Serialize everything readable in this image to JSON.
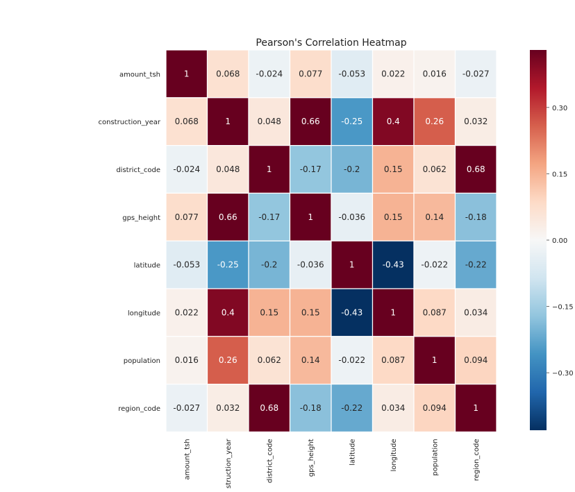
{
  "chart_data": {
    "type": "heatmap",
    "title": "Pearson's Correlation Heatmap",
    "rows": [
      "amount_tsh",
      "construction_year",
      "district_code",
      "gps_height",
      "latitude",
      "longitude",
      "population",
      "region_code"
    ],
    "columns": [
      "amount_tsh",
      "struction_year",
      "district_code",
      "gps_height",
      "latitude",
      "longitude",
      "population",
      "region_code"
    ],
    "values": [
      [
        1,
        0.068,
        -0.024,
        0.077,
        -0.053,
        0.022,
        0.016,
        -0.027
      ],
      [
        0.068,
        1,
        0.048,
        0.66,
        -0.25,
        0.4,
        0.26,
        0.032
      ],
      [
        -0.024,
        0.048,
        1,
        -0.17,
        -0.2,
        0.15,
        0.062,
        0.68
      ],
      [
        0.077,
        0.66,
        -0.17,
        1,
        -0.036,
        0.15,
        0.14,
        -0.18
      ],
      [
        -0.053,
        -0.25,
        -0.2,
        -0.036,
        1,
        -0.43,
        -0.022,
        -0.22
      ],
      [
        0.022,
        0.4,
        0.15,
        0.15,
        -0.43,
        1,
        0.087,
        0.034
      ],
      [
        0.016,
        0.26,
        0.062,
        0.14,
        -0.022,
        0.087,
        1,
        0.094
      ],
      [
        -0.027,
        0.032,
        0.68,
        -0.18,
        -0.22,
        0.034,
        0.094,
        1
      ]
    ],
    "colorbar": {
      "range": [
        -0.43,
        0.43
      ],
      "ticks": [
        0.3,
        0.15,
        0.0,
        -0.15,
        -0.3
      ],
      "tick_labels": [
        "0.30",
        "0.15",
        "0.00",
        "−0.15",
        "−0.30"
      ],
      "colormap": "RdBu_r",
      "colors_low_to_high": [
        "#053061",
        "#2166ac",
        "#4393c3",
        "#92c5de",
        "#d1e5f0",
        "#f7f7f7",
        "#fddbc7",
        "#f4a582",
        "#d6604d",
        "#b2182b",
        "#67001f"
      ]
    },
    "grid": false,
    "legend": "colorbar-right"
  }
}
